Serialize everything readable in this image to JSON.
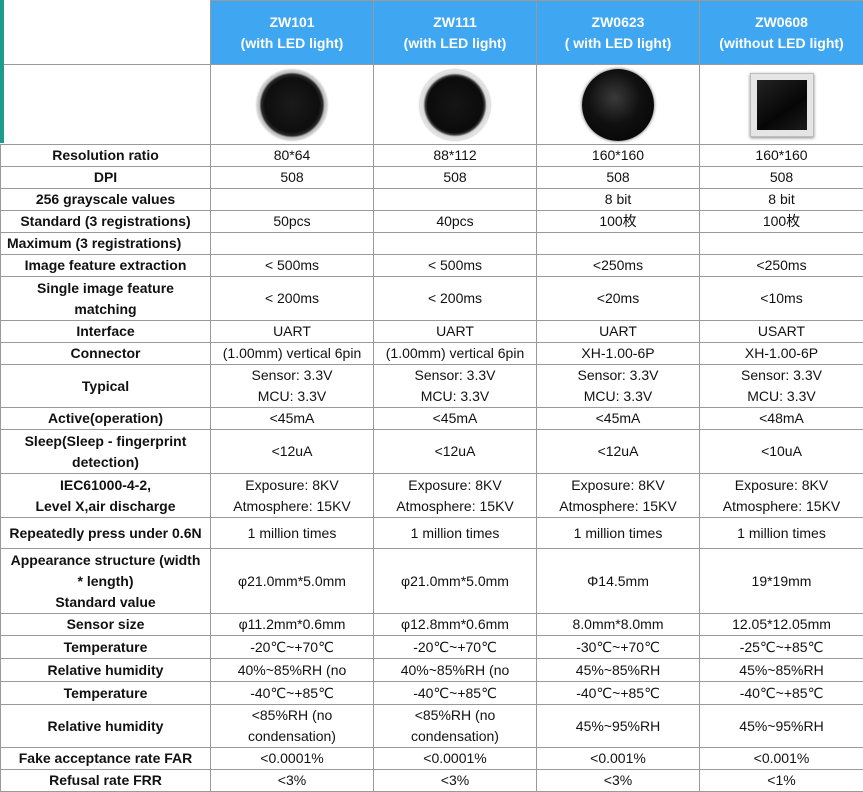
{
  "header": {
    "models": [
      {
        "name": "ZW101",
        "note": "(with LED light)"
      },
      {
        "name": "ZW111",
        "note": "(with LED light)"
      },
      {
        "name": "ZW0623",
        "note": "( with LED light)"
      },
      {
        "name": "ZW0608",
        "note": "(without LED light)"
      }
    ]
  },
  "images": [
    {
      "icon": "round-sensor-icon",
      "style": "round"
    },
    {
      "icon": "round-sensor-icon",
      "style": "round2"
    },
    {
      "icon": "round-black-sensor-icon",
      "style": "round3"
    },
    {
      "icon": "square-sensor-icon",
      "style": "square"
    }
  ],
  "rows": [
    {
      "label": [
        "Resolution ratio"
      ],
      "values": [
        [
          "80*64"
        ],
        [
          "88*112"
        ],
        [
          "160*160"
        ],
        [
          "160*160"
        ]
      ]
    },
    {
      "label": [
        "DPI"
      ],
      "values": [
        [
          "508"
        ],
        [
          "508"
        ],
        [
          "508"
        ],
        [
          "508"
        ]
      ]
    },
    {
      "label": [
        "256 grayscale values"
      ],
      "values": [
        [
          ""
        ],
        [
          ""
        ],
        [
          "8 bit"
        ],
        [
          "8 bit"
        ]
      ]
    },
    {
      "label": [
        "Standard (3 registrations)"
      ],
      "values": [
        [
          "50pcs"
        ],
        [
          "40pcs"
        ],
        [
          "100枚"
        ],
        [
          "100枚"
        ]
      ]
    },
    {
      "label": [
        "Maximum (3 registrations)"
      ],
      "align": "left",
      "values": [
        [
          ""
        ],
        [
          ""
        ],
        [
          ""
        ],
        [
          ""
        ]
      ]
    },
    {
      "label": [
        "Image feature extraction"
      ],
      "values": [
        [
          "< 500ms"
        ],
        [
          "< 500ms"
        ],
        [
          "<250ms"
        ],
        [
          "<250ms"
        ]
      ]
    },
    {
      "label": [
        "Single image feature",
        "matching"
      ],
      "values": [
        [
          "< 200ms"
        ],
        [
          "< 200ms"
        ],
        [
          "<20ms"
        ],
        [
          "<10ms"
        ]
      ]
    },
    {
      "label": [
        "Interface"
      ],
      "values": [
        [
          "UART"
        ],
        [
          "UART"
        ],
        [
          "UART"
        ],
        [
          "USART"
        ]
      ]
    },
    {
      "label": [
        "Connector"
      ],
      "values": [
        [
          "(1.00mm) vertical 6pin"
        ],
        [
          "(1.00mm) vertical 6pin"
        ],
        [
          "XH-1.00-6P"
        ],
        [
          "XH-1.00-6P"
        ]
      ]
    },
    {
      "label": [
        "Typical"
      ],
      "values": [
        [
          "Sensor:  3.3V",
          "MCU:  3.3V"
        ],
        [
          "Sensor:  3.3V",
          "MCU:  3.3V"
        ],
        [
          "Sensor:  3.3V",
          "MCU:  3.3V"
        ],
        [
          "Sensor:  3.3V",
          "MCU:  3.3V"
        ]
      ]
    },
    {
      "label": [
        "Active(operation)"
      ],
      "values": [
        [
          "<45mA"
        ],
        [
          "<45mA"
        ],
        [
          "<45mA"
        ],
        [
          "<48mA"
        ]
      ]
    },
    {
      "label": [
        "Sleep(Sleep - fingerprint",
        "detection)"
      ],
      "values": [
        [
          "<12uA"
        ],
        [
          "<12uA"
        ],
        [
          "<12uA"
        ],
        [
          "<10uA"
        ]
      ]
    },
    {
      "label": [
        "IEC61000-4-2,",
        "Level X,air discharge"
      ],
      "values": [
        [
          "Exposure:  8KV",
          "Atmosphere:  15KV"
        ],
        [
          "Exposure:  8KV",
          "Atmosphere:  15KV"
        ],
        [
          "Exposure:  8KV",
          "Atmosphere:  15KV"
        ],
        [
          "Exposure:  8KV",
          "Atmosphere:  15KV"
        ]
      ]
    },
    {
      "label": [
        "Repeatedly press under 0.6N"
      ],
      "values": [
        [
          "1 million times"
        ],
        [
          "1 million times"
        ],
        [
          "1 million times"
        ],
        [
          "1 million times"
        ]
      ]
    },
    {
      "label": [
        "Appearance structure (width",
        "* length)",
        "Standard value"
      ],
      "values": [
        [
          "φ21.0mm*5.0mm"
        ],
        [
          "φ21.0mm*5.0mm"
        ],
        [
          "Φ14.5mm"
        ],
        [
          "19*19mm"
        ]
      ]
    },
    {
      "label": [
        "Sensor size"
      ],
      "values": [
        [
          "φ11.2mm*0.6mm"
        ],
        [
          "φ12.8mm*0.6mm"
        ],
        [
          "8.0mm*8.0mm"
        ],
        [
          "12.05*12.05mm"
        ]
      ]
    },
    {
      "label": [
        "Temperature"
      ],
      "values": [
        [
          "-20℃~+70℃"
        ],
        [
          "-20℃~+70℃"
        ],
        [
          "-30℃~+70℃"
        ],
        [
          "-25℃~+85℃"
        ]
      ]
    },
    {
      "label": [
        "Relative humidity"
      ],
      "values": [
        [
          "40%~85%RH (no"
        ],
        [
          "40%~85%RH (no"
        ],
        [
          "45%~85%RH"
        ],
        [
          "45%~85%RH"
        ]
      ]
    },
    {
      "label": [
        "Temperature"
      ],
      "values": [
        [
          "-40℃~+85℃"
        ],
        [
          "-40℃~+85℃"
        ],
        [
          "-40℃~+85℃"
        ],
        [
          "-40℃~+85℃"
        ]
      ]
    },
    {
      "label": [
        "Relative humidity"
      ],
      "values": [
        [
          "<85%RH (no",
          "condensation)"
        ],
        [
          "<85%RH (no",
          "condensation)"
        ],
        [
          "45%~95%RH"
        ],
        [
          "45%~95%RH"
        ]
      ]
    },
    {
      "label": [
        "Fake acceptance rate FAR"
      ],
      "values": [
        [
          "<0.0001%"
        ],
        [
          "<0.0001%"
        ],
        [
          "<0.001%"
        ],
        [
          "<0.001%"
        ]
      ]
    },
    {
      "label": [
        "Refusal rate FRR"
      ],
      "values": [
        [
          "<3%"
        ],
        [
          "<3%"
        ],
        [
          "<3%"
        ],
        [
          "<1%"
        ]
      ]
    }
  ]
}
